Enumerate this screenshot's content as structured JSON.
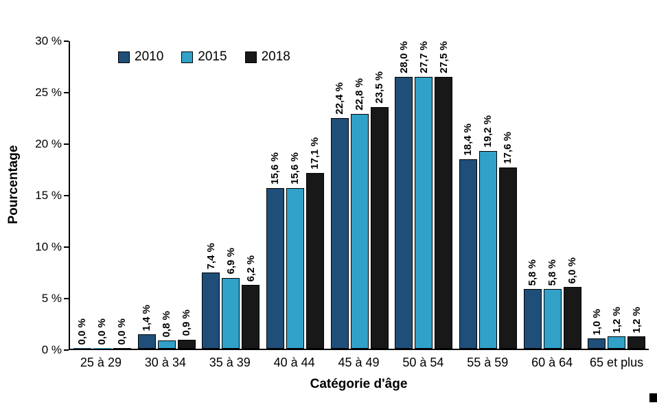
{
  "chart_data": {
    "type": "bar",
    "title": "",
    "categories": [
      "25 à 29",
      "30 à 34",
      "35 à 39",
      "40 à 44",
      "45 à 49",
      "50 à 54",
      "55 à 59",
      "60 à 64",
      "65 et plus"
    ],
    "series": [
      {
        "name": "2010",
        "color": "#1F4E79",
        "values": [
          0.0,
          1.4,
          7.4,
          15.6,
          22.4,
          28.0,
          18.4,
          5.8,
          1.0
        ],
        "labels": [
          "0,0 %",
          "1,4 %",
          "7,4 %",
          "15,6 %",
          "22,4 %",
          "28,0 %",
          "18,4 %",
          "5,8 %",
          "1,0 %"
        ]
      },
      {
        "name": "2015",
        "color": "#31A1C8",
        "values": [
          0.0,
          0.8,
          6.9,
          15.6,
          22.8,
          27.7,
          19.2,
          5.8,
          1.2
        ],
        "labels": [
          "0,0 %",
          "0,8 %",
          "6,9 %",
          "15,6 %",
          "22,8 %",
          "27,7 %",
          "19,2 %",
          "5,8 %",
          "1,2 %"
        ]
      },
      {
        "name": "2018",
        "color": "#181818",
        "values": [
          0.0,
          0.9,
          6.2,
          17.1,
          23.5,
          27.5,
          17.6,
          6.0,
          1.2
        ],
        "labels": [
          "0,0 %",
          "0,9 %",
          "6,2 %",
          "17,1 %",
          "23,5 %",
          "27,5 %",
          "17,6 %",
          "6,0 %",
          "1,2 %"
        ]
      }
    ],
    "xlabel": "Catégorie d'âge",
    "ylabel": "Pourcentage",
    "ylim": [
      0,
      30
    ],
    "ytick_step": 5,
    "yticks": [
      "0 %",
      "5 %",
      "10 %",
      "15 %",
      "20 %",
      "25 %",
      "30 %"
    ],
    "legend_position": "top-left",
    "grid": false,
    "bar_outline_color": "#000000"
  }
}
